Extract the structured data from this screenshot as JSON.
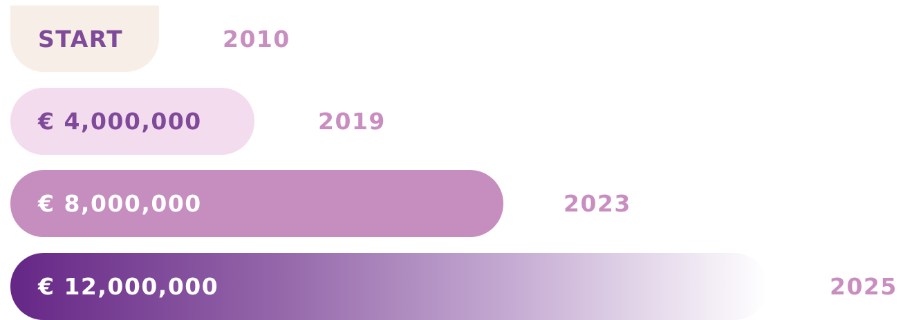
{
  "rows": [
    {
      "label": "START",
      "year": "2010"
    },
    {
      "label": "€ 4,000,000",
      "year": "2019"
    },
    {
      "label": "€ 8,000,000",
      "year": "2023"
    },
    {
      "label": "€ 12,000,000",
      "year": "2025"
    }
  ]
}
